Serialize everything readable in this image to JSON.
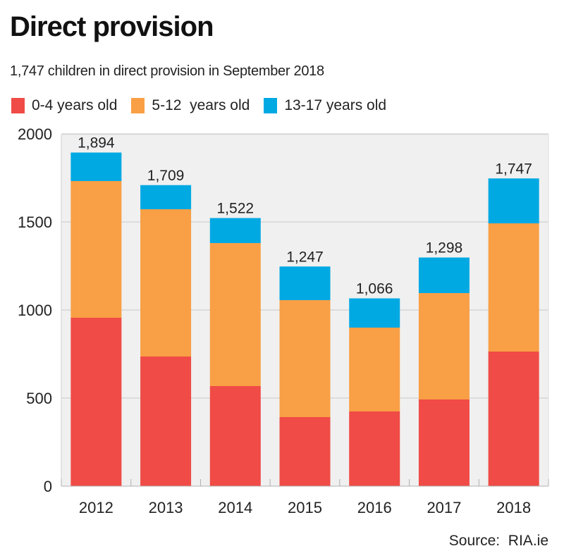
{
  "header": {
    "title": "Direct provision",
    "subtitle": "1,747 children in direct provision in September 2018"
  },
  "footer": {
    "source": "Source:  RIA.ie"
  },
  "chart_data": {
    "type": "bar",
    "stacked": true,
    "title": "Direct provision",
    "subtitle": "1,747 children in direct provision in September 2018",
    "xlabel": "",
    "ylabel": "",
    "categories": [
      "2012",
      "2013",
      "2014",
      "2015",
      "2016",
      "2017",
      "2018"
    ],
    "series": [
      {
        "name": "0-4 years old",
        "color": "#f04b46",
        "values": [
          956,
          736,
          568,
          392,
          424,
          492,
          764
        ]
      },
      {
        "name": "5-12  years old",
        "color": "#f99f45",
        "values": [
          776,
          836,
          812,
          664,
          476,
          604,
          728
        ]
      },
      {
        "name": "13-17 years old",
        "color": "#01a9e3",
        "values": [
          162,
          137,
          142,
          191,
          166,
          202,
          255
        ]
      }
    ],
    "totals": [
      1894,
      1709,
      1522,
      1247,
      1066,
      1298,
      1747
    ],
    "total_labels": [
      "1,894",
      "1,709",
      "1,522",
      "1,247",
      "1,066",
      "1,298",
      "1,747"
    ],
    "ylim": [
      0,
      2000
    ],
    "yticks": [
      0,
      500,
      1000,
      1500,
      2000
    ],
    "ytick_labels": [
      "0",
      "500",
      "1000",
      "1500",
      "2000"
    ],
    "grid": true,
    "legend_position": "top-left",
    "plot_background": "#f0f0f0",
    "grid_color": "#c8c8c8"
  }
}
